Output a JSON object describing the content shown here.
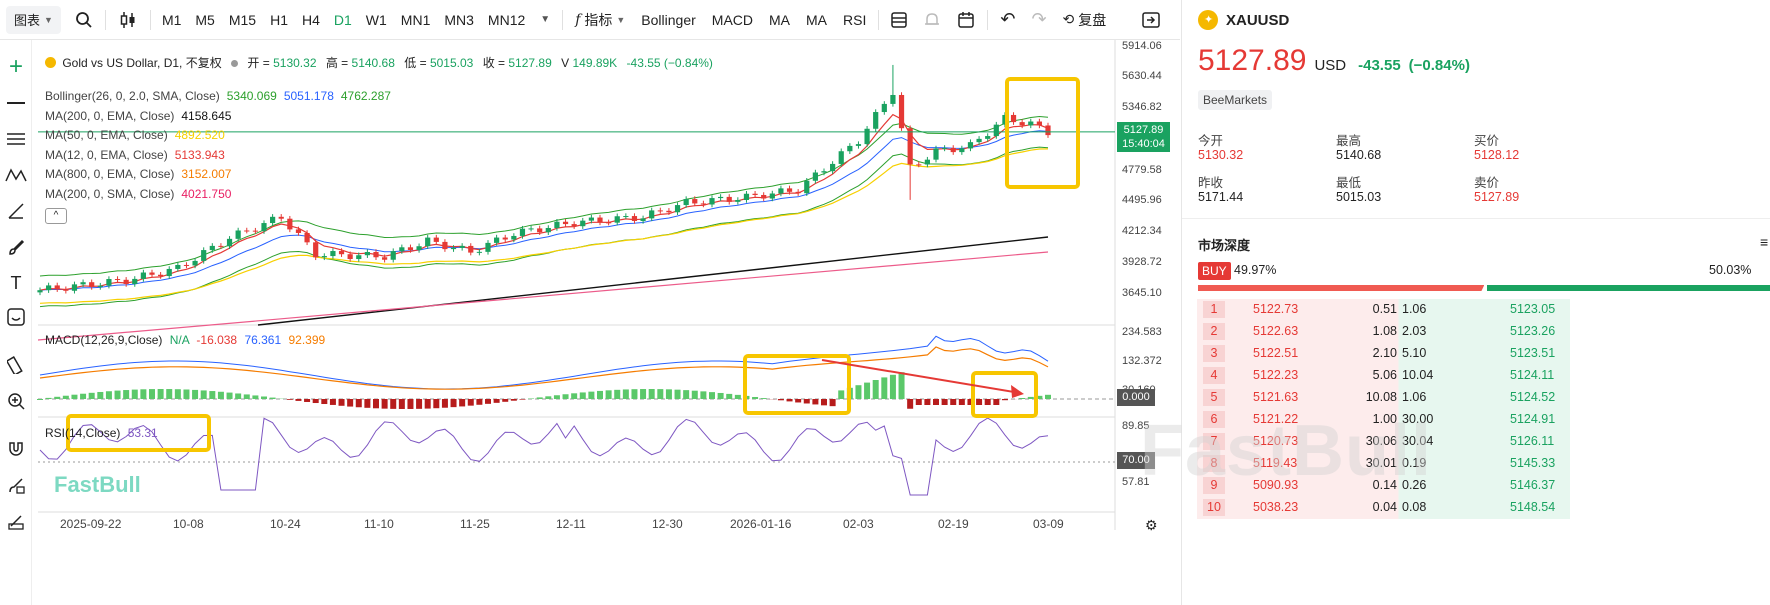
{
  "toolbar": {
    "chart_menu": "图表",
    "timeframes": [
      "M1",
      "M5",
      "M15",
      "H1",
      "H4",
      "D1",
      "W1",
      "MN1",
      "MN3",
      "MN12"
    ],
    "active_timeframe": "D1",
    "indicators_label": "指标",
    "indicator_shortcuts": [
      "Bollinger",
      "MACD",
      "MA",
      "MA",
      "RSI"
    ],
    "replay_label": "复盘"
  },
  "legend": {
    "title": "Gold vs US Dollar, D1, 不复权",
    "open_label": "开 =",
    "open": "5130.32",
    "high_label": "高 =",
    "high": "5140.68",
    "low_label": "低 =",
    "low": "5015.03",
    "close_label": "收 =",
    "close": "5127.89",
    "vol_label": "V",
    "vol": "149.89K",
    "change": "-43.55 (−0.84%)"
  },
  "indicators": [
    {
      "name": "Bollinger(26, 0, 2.0, SMA, Close)",
      "values": [
        "5340.069",
        "5051.178",
        "4762.287"
      ],
      "colors": [
        "#2ca02c",
        "#2962ff",
        "#2ca02c"
      ]
    },
    {
      "name": "MA(200, 0, EMA, Close)",
      "values": [
        "4158.645"
      ],
      "colors": [
        "#111111"
      ]
    },
    {
      "name": "MA(50, 0, EMA, Close)",
      "values": [
        "4892.520"
      ],
      "colors": [
        "#f7d000"
      ]
    },
    {
      "name": "MA(12, 0, EMA, Close)",
      "values": [
        "5133.943"
      ],
      "colors": [
        "#e53935"
      ]
    },
    {
      "name": "MA(800, 0, EMA, Close)",
      "values": [
        "3152.007"
      ],
      "colors": [
        "#f57c00"
      ]
    },
    {
      "name": "MA(200, 0, SMA, Close)",
      "values": [
        "4021.750"
      ],
      "colors": [
        "#e91e63"
      ]
    }
  ],
  "macd": {
    "label": "MACD(12,26,9,Close)",
    "values": [
      "N/A",
      "-16.038",
      "76.361",
      "92.399"
    ],
    "zero": "0.000"
  },
  "rsi": {
    "label": "RSI(14,Close)",
    "value": "53.31",
    "level": "70.00"
  },
  "price_axis": [
    "5914.06",
    "5630.44",
    "5346.82",
    "5063.20",
    "4779.58",
    "4495.96",
    "4212.34",
    "3928.72",
    "3645.10"
  ],
  "current_price_tag": "5127.89",
  "countdown_tag": "15:40:04",
  "macd_axis": [
    "234.583",
    "132.372",
    "30.160"
  ],
  "rsi_axis": [
    "89.85",
    "70.00",
    "57.81"
  ],
  "time_axis": [
    "2025-09-22",
    "10-08",
    "10-24",
    "11-10",
    "11-25",
    "12-11",
    "12-30",
    "2026-01-16",
    "02-03",
    "02-19",
    "03-09"
  ],
  "watermark": "FastBull",
  "quote": {
    "symbol": "XAUUSD",
    "price": "5127.89",
    "currency": "USD",
    "change": "-43.55",
    "change_pct": "(−0.84%)",
    "source": "BeeMarkets",
    "stats": [
      {
        "label": "今开",
        "value": "5130.32",
        "color": "#e53935"
      },
      {
        "label": "最高",
        "value": "5140.68",
        "color": "#222222"
      },
      {
        "label": "买价",
        "value": "5128.12",
        "color": "#e53935"
      },
      {
        "label": "昨收",
        "value": "5171.44",
        "color": "#222222"
      },
      {
        "label": "最低",
        "value": "5015.03",
        "color": "#222222"
      },
      {
        "label": "卖价",
        "value": "5127.89",
        "color": "#e53935"
      }
    ]
  },
  "depth": {
    "title": "市场深度",
    "buy_label": "BUY",
    "buy_pct": "49.97%",
    "sell_pct": "50.03%",
    "rows": [
      {
        "n": "1",
        "bid": "5122.73",
        "bid_vol": "0.51",
        "ask_vol": "1.06",
        "ask": "5123.05"
      },
      {
        "n": "2",
        "bid": "5122.63",
        "bid_vol": "1.08",
        "ask_vol": "2.03",
        "ask": "5123.26"
      },
      {
        "n": "3",
        "bid": "5122.51",
        "bid_vol": "2.10",
        "ask_vol": "5.10",
        "ask": "5123.51"
      },
      {
        "n": "4",
        "bid": "5122.23",
        "bid_vol": "5.06",
        "ask_vol": "10.04",
        "ask": "5124.11"
      },
      {
        "n": "5",
        "bid": "5121.63",
        "bid_vol": "10.08",
        "ask_vol": "1.06",
        "ask": "5124.52"
      },
      {
        "n": "6",
        "bid": "5121.22",
        "bid_vol": "1.00",
        "ask_vol": "30.00",
        "ask": "5124.91"
      },
      {
        "n": "7",
        "bid": "5120.73",
        "bid_vol": "30.06",
        "ask_vol": "30.04",
        "ask": "5126.11"
      },
      {
        "n": "8",
        "bid": "5119.43",
        "bid_vol": "30.01",
        "ask_vol": "0.19",
        "ask": "5145.33"
      },
      {
        "n": "9",
        "bid": "5090.93",
        "bid_vol": "0.14",
        "ask_vol": "0.26",
        "ask": "5146.37"
      },
      {
        "n": "10",
        "bid": "5038.23",
        "bid_vol": "0.04",
        "ask_vol": "0.08",
        "ask": "5148.54"
      }
    ]
  },
  "colors": {
    "up": "#1aa260",
    "down": "#e53935",
    "highlight": "#f7c600",
    "accent": "#1aa260"
  }
}
